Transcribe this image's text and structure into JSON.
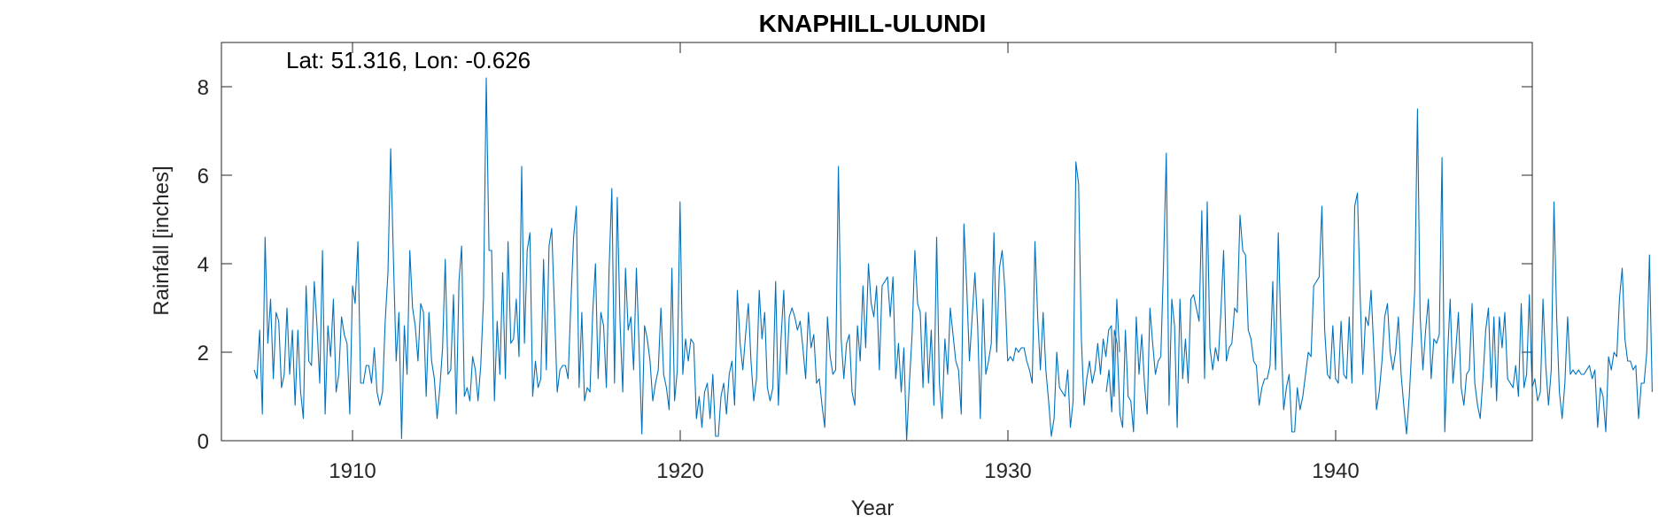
{
  "chart_data": {
    "type": "line",
    "title": "KNAPHILL-ULUNDI",
    "xlabel": "Year",
    "ylabel": "Rainfall [inches]",
    "annotation": "Lat: 51.316, Lon: -0.626",
    "xlim": [
      1906,
      1946
    ],
    "ylim": [
      0,
      9
    ],
    "xticks": [
      1910,
      1920,
      1930,
      1940
    ],
    "yticks": [
      0,
      2,
      4,
      6,
      8
    ],
    "grid": false,
    "color": "#0072BD",
    "series": [
      {
        "segments": [
          {
            "start_year": 1907.0,
            "step": 0.0833,
            "values": [
              1.6,
              1.4,
              2.5,
              0.6,
              4.6,
              2.2,
              3.2,
              1.4,
              2.9,
              2.7,
              1.2,
              1.5,
              3.0,
              1.5,
              2.5,
              0.8,
              2.5,
              1.1,
              0.5,
              3.5,
              1.8,
              1.7,
              3.6,
              2.6,
              1.3,
              4.3,
              0.6,
              2.6,
              1.9,
              3.2,
              1.1,
              1.5,
              2.8,
              2.4,
              2.2,
              0.6,
              3.5,
              3.1,
              4.5,
              1.3,
              1.3,
              1.7,
              1.7,
              1.3,
              2.1,
              1.1,
              0.8,
              1.1,
              2.7,
              3.8,
              6.6,
              4.1,
              1.8,
              2.9,
              0.05,
              2.6,
              1.5,
              4.3,
              3.0,
              2.6,
              1.8,
              3.1,
              2.9,
              1.0,
              2.9,
              1.8,
              1.4,
              0.5,
              1.2,
              2.1,
              4.1,
              1.5,
              1.6,
              3.3,
              0.6,
              3.6,
              4.4,
              1.0,
              1.2,
              0.9,
              1.9,
              1.6,
              0.9,
              1.7,
              3.2,
              8.2,
              4.3,
              4.3,
              0.9,
              2.7,
              1.5,
              3.8,
              1.4,
              4.5,
              2.2,
              2.3,
              3.2,
              1.9,
              6.2,
              2.2,
              4.3,
              4.7,
              1.0,
              1.8,
              1.2,
              1.4,
              4.1,
              1.6,
              4.4,
              4.8,
              3.0,
              1.1,
              1.6,
              1.7,
              1.7,
              1.4,
              3.1,
              4.6,
              5.3,
              1.2,
              2.9,
              0.9,
              1.2,
              1.1,
              2.9,
              4.0,
              1.4,
              2.9,
              2.6,
              1.2,
              3.9,
              5.7,
              1.3,
              5.5,
              2.7,
              1.1,
              3.9,
              2.5,
              2.8,
              1.6,
              3.9,
              2.1,
              0.15,
              2.6,
              2.3,
              1.8,
              0.9,
              1.3,
              1.6,
              3.0,
              1.5,
              1.2,
              0.7,
              3.9,
              0.9,
              1.6,
              5.4,
              1.5,
              2.3,
              1.8,
              2.3,
              2.2,
              0.5,
              1.0,
              0.3,
              1.1,
              1.3,
              0.5,
              1.5,
              0.1,
              0.1,
              1.0,
              1.3,
              0.6,
              1.5,
              1.8,
              0.8,
              3.4,
              2.2,
              1.6,
              2.4,
              3.1,
              1.8,
              0.9,
              1.4,
              3.4,
              2.3,
              2.9,
              1.2,
              0.9,
              1.2,
              3.6,
              0.8,
              2.3,
              3.4,
              1.5,
              2.8,
              3.0,
              2.8,
              2.5,
              2.7,
              2.1,
              1.4,
              2.9,
              2.1,
              2.4,
              1.3,
              1.4,
              0.8,
              0.3,
              2.8,
              1.9,
              1.5,
              1.6,
              6.2,
              2.3,
              1.4,
              2.2,
              2.4,
              1.1,
              0.8,
              2.6,
              1.8,
              3.5,
              2.1,
              4.0,
              3.1,
              2.8,
              3.5,
              1.6,
              3.5,
              3.6,
              3.7,
              2.8,
              3.7,
              1.4,
              2.2,
              1.1,
              2.1,
              0.0,
              1.3,
              2.4,
              4.3,
              3.1,
              2.9,
              1.2,
              2.9,
              1.3,
              2.5,
              0.8,
              4.6,
              1.3,
              0.5,
              2.3,
              1.5,
              3.0,
              2.4,
              1.8,
              1.6,
              0.6,
              4.9,
              3.5,
              1.8,
              2.8,
              3.8,
              2.6,
              0.5,
              3.2,
              1.5,
              1.8,
              2.2,
              4.7,
              2.0,
              3.9,
              4.3,
              3.4,
              1.8,
              1.9,
              1.8,
              2.1,
              2.0,
              2.1,
              2.1,
              1.8,
              1.6,
              1.3,
              4.5,
              2.8,
              1.6,
              2.9,
              1.6,
              0.9,
              0.1,
              0.5,
              2.0,
              1.2,
              1.1,
              1.0,
              1.6,
              0.3,
              0.9,
              6.3,
              5.8,
              2.3,
              0.8,
              1.4,
              1.8,
              1.3,
              1.6,
              2.2,
              1.5,
              2.3,
              1.9,
              2.5,
              2.6,
              1.0,
              3.2,
              2.0
            ]
          },
          {
            "start_year": 1933.0,
            "step": 0.0833,
            "values": [
              1.1,
              1.6,
              0.65,
              2.5,
              2.2,
              0.6,
              0.3,
              2.5,
              1.0,
              0.9,
              0.2,
              2.8,
              1.5,
              2.4,
              1.3,
              0.6,
              3.0,
              2.2,
              1.5,
              1.8,
              1.9,
              4.0,
              6.5,
              0.8,
              3.2,
              2.6,
              0.3,
              3.2,
              1.4,
              2.3,
              1.3,
              3.2,
              3.3,
              3.0,
              2.7,
              5.2,
              1.4,
              5.4,
              2.1,
              1.6,
              2.1,
              1.8,
              2.9,
              4.3,
              1.8,
              2.1,
              2.2,
              3.0,
              2.9,
              5.1,
              4.3,
              4.2,
              2.5,
              2.3,
              1.8,
              1.7,
              0.8,
              1.2,
              1.4,
              1.4,
              1.7,
              3.6,
              1.6,
              4.7,
              2.4,
              0.7,
              1.2,
              1.5,
              0.2,
              0.2,
              1.2,
              0.7,
              1.0,
              1.5,
              2.0,
              1.9,
              3.5,
              3.6,
              3.7,
              5.3,
              2.5,
              1.5,
              1.4,
              2.6,
              1.4,
              1.3,
              2.7,
              1.5,
              1.4,
              2.8,
              1.3,
              5.3,
              5.6,
              3.3,
              1.5,
              2.8,
              2.6,
              3.4,
              2.1,
              0.7,
              1.1,
              1.8,
              2.8,
              3.1,
              2.0,
              1.6,
              2.0,
              2.8,
              1.5,
              0.8,
              0.15,
              1.0,
              2.2,
              3.4,
              7.5,
              2.8,
              1.6,
              2.5,
              3.2,
              1.4,
              2.3,
              2.2,
              2.4,
              6.4,
              0.2,
              1.9,
              3.2,
              1.3,
              2.0,
              2.9,
              1.2,
              0.8,
              1.5,
              1.6,
              3.1,
              1.3,
              0.8,
              0.5,
              1.4,
              2.5,
              3.0,
              1.2,
              2.8,
              0.9,
              2.8,
              2.1,
              2.9,
              1.4,
              1.3,
              1.2,
              1.7,
              1.0,
              3.1,
              1.2,
              1.5,
              3.3,
              1.2,
              1.4,
              0.9,
              1.1,
              3.2,
              1.7,
              0.8,
              1.6,
              5.4,
              2.8,
              1.1,
              0.5,
              1.3,
              2.8,
              1.5,
              1.6,
              1.5,
              1.6,
              1.5,
              1.5,
              1.6,
              1.7,
              1.4,
              1.6,
              0.3,
              1.2,
              1.0,
              0.2,
              1.9,
              1.6,
              2.0,
              1.9,
              3.2,
              3.9,
              2.3,
              1.8,
              1.8,
              1.6,
              1.7,
              0.5,
              1.3,
              1.3,
              2.0,
              4.2,
              1.1
            ]
          }
        ]
      }
    ]
  }
}
